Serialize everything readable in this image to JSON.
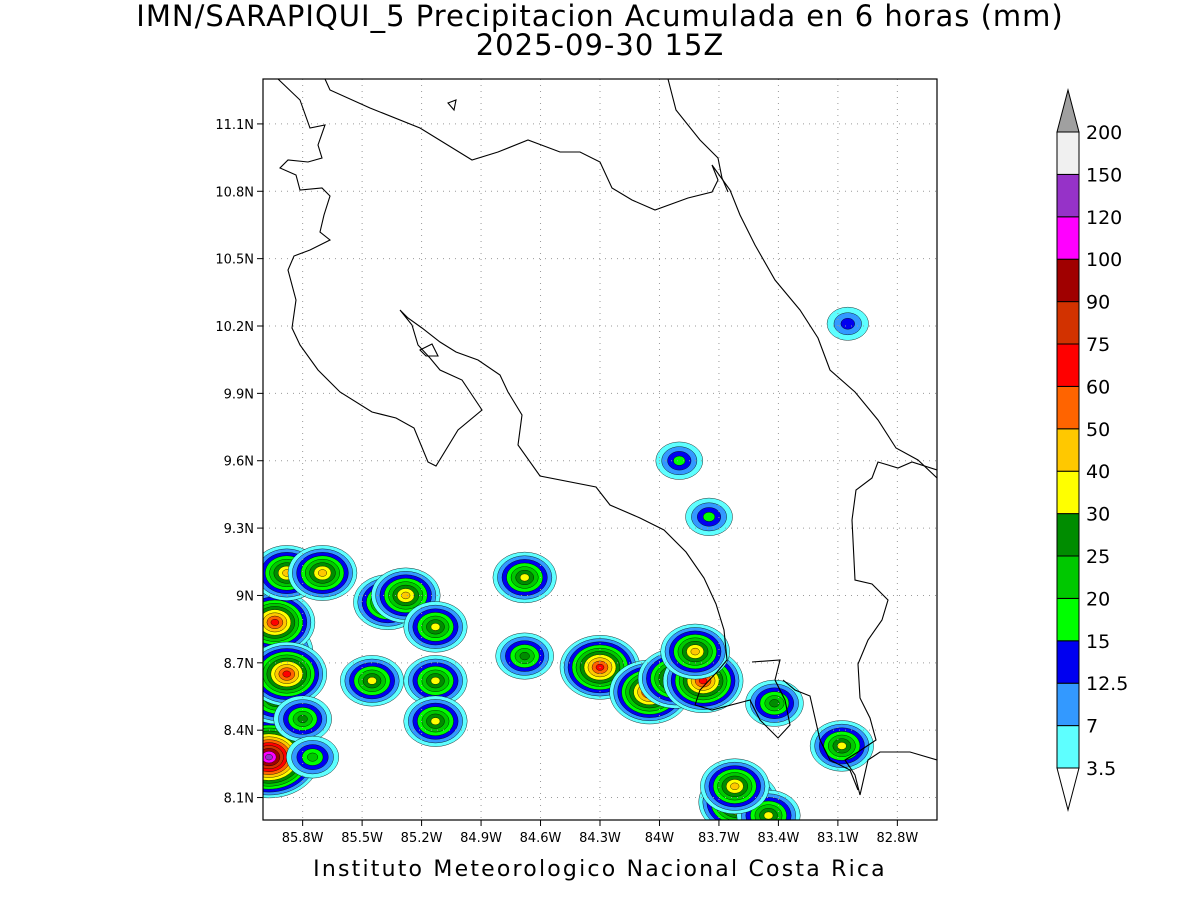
{
  "title": {
    "line1": "IMN/SARAPIQUI_5 Precipitacion Acumulada en 6 horas (mm)",
    "line2": "2025-09-30 15Z"
  },
  "credit": "Instituto Meteorologico Nacional Costa Rica",
  "map": {
    "lon_range": [
      -86.0,
      -82.6
    ],
    "lat_range": [
      8.0,
      11.3
    ],
    "lon_ticks": [
      {
        "value": -85.8,
        "label": "85.8W"
      },
      {
        "value": -85.5,
        "label": "85.5W"
      },
      {
        "value": -85.2,
        "label": "85.2W"
      },
      {
        "value": -84.9,
        "label": "84.9W"
      },
      {
        "value": -84.6,
        "label": "84.6W"
      },
      {
        "value": -84.3,
        "label": "84.3W"
      },
      {
        "value": -84.0,
        "label": "84W"
      },
      {
        "value": -83.7,
        "label": "83.7W"
      },
      {
        "value": -83.4,
        "label": "83.4W"
      },
      {
        "value": -83.1,
        "label": "83.1W"
      },
      {
        "value": -82.8,
        "label": "82.8W"
      }
    ],
    "lat_ticks": [
      {
        "value": 8.1,
        "label": "8.1N"
      },
      {
        "value": 8.4,
        "label": "8.4N"
      },
      {
        "value": 8.7,
        "label": "8.7N"
      },
      {
        "value": 9.0,
        "label": "9N"
      },
      {
        "value": 9.3,
        "label": "9.3N"
      },
      {
        "value": 9.6,
        "label": "9.6N"
      },
      {
        "value": 9.9,
        "label": "9.9N"
      },
      {
        "value": 10.2,
        "label": "10.2N"
      },
      {
        "value": 10.5,
        "label": "10.5N"
      },
      {
        "value": 10.8,
        "label": "10.8N"
      },
      {
        "value": 11.1,
        "label": "11.1N"
      }
    ],
    "grid": true
  },
  "colorbar": {
    "levels": [
      "3.5",
      "7",
      "12.5",
      "15",
      "20",
      "25",
      "30",
      "40",
      "50",
      "60",
      "75",
      "90",
      "100",
      "120",
      "150",
      "200"
    ],
    "colors": [
      "#5effff",
      "#3399ff",
      "#0000f0",
      "#00ff00",
      "#00c800",
      "#008c00",
      "#ffff00",
      "#ffc800",
      "#ff6400",
      "#ff0000",
      "#d23200",
      "#a00000",
      "#ff00ff",
      "#9632c8",
      "#f0f0f0",
      "#a0a0a0"
    ],
    "below_color": "#ffffff",
    "above_color": "#a0a0a0"
  },
  "rain_cells": [
    {
      "lon": -85.97,
      "lat": 8.28,
      "max_mm": 120
    },
    {
      "lon": -85.95,
      "lat": 8.75,
      "max_mm": 60
    },
    {
      "lon": -85.94,
      "lat": 8.88,
      "max_mm": 60
    },
    {
      "lon": -85.93,
      "lat": 8.55,
      "max_mm": 40
    },
    {
      "lon": -85.88,
      "lat": 8.65,
      "max_mm": 60
    },
    {
      "lon": -85.88,
      "lat": 9.1,
      "max_mm": 40
    },
    {
      "lon": -85.7,
      "lat": 9.1,
      "max_mm": 40
    },
    {
      "lon": -85.8,
      "lat": 8.45,
      "max_mm": 25
    },
    {
      "lon": -85.75,
      "lat": 8.28,
      "max_mm": 20
    },
    {
      "lon": -85.45,
      "lat": 8.62,
      "max_mm": 30
    },
    {
      "lon": -85.37,
      "lat": 8.97,
      "max_mm": 40
    },
    {
      "lon": -85.28,
      "lat": 9.0,
      "max_mm": 40
    },
    {
      "lon": -85.13,
      "lat": 8.86,
      "max_mm": 30
    },
    {
      "lon": -85.13,
      "lat": 8.62,
      "max_mm": 30
    },
    {
      "lon": -85.13,
      "lat": 8.44,
      "max_mm": 30
    },
    {
      "lon": -84.68,
      "lat": 9.08,
      "max_mm": 30
    },
    {
      "lon": -84.68,
      "lat": 8.73,
      "max_mm": 25
    },
    {
      "lon": -84.3,
      "lat": 8.68,
      "max_mm": 60
    },
    {
      "lon": -84.05,
      "lat": 8.57,
      "max_mm": 60
    },
    {
      "lon": -83.92,
      "lat": 8.63,
      "max_mm": 50
    },
    {
      "lon": -83.78,
      "lat": 8.62,
      "max_mm": 60
    },
    {
      "lon": -83.82,
      "lat": 8.75,
      "max_mm": 40
    },
    {
      "lon": -83.6,
      "lat": 8.08,
      "max_mm": 60
    },
    {
      "lon": -83.45,
      "lat": 8.02,
      "max_mm": 30
    },
    {
      "lon": -83.08,
      "lat": 8.33,
      "max_mm": 30
    },
    {
      "lon": -83.42,
      "lat": 8.52,
      "max_mm": 25
    },
    {
      "lon": -83.62,
      "lat": 8.15,
      "max_mm": 40
    },
    {
      "lon": -83.9,
      "lat": 9.6,
      "max_mm": 15
    },
    {
      "lon": -83.75,
      "lat": 9.35,
      "max_mm": 15
    },
    {
      "lon": -83.05,
      "lat": 10.21,
      "max_mm": 12.5
    }
  ]
}
